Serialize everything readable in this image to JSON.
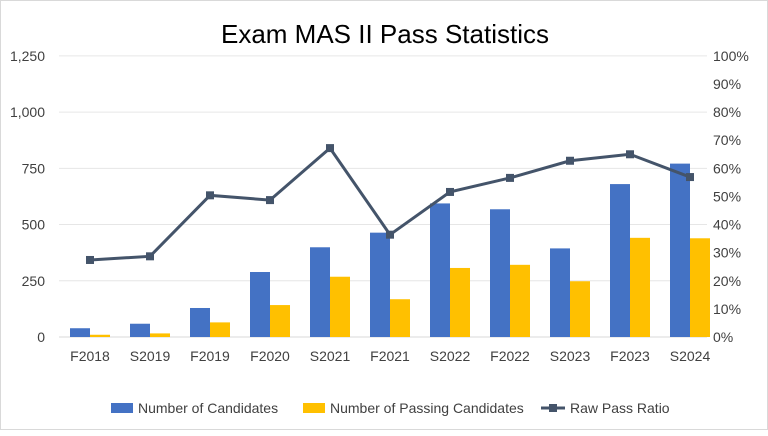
{
  "chart_data": {
    "type": "bar",
    "title": "Exam MAS II Pass Statistics",
    "categories": [
      "F2018",
      "S2019",
      "F2019",
      "F2020",
      "S2021",
      "F2021",
      "S2022",
      "F2022",
      "S2023",
      "F2023",
      "S2024"
    ],
    "series": [
      {
        "name": "Number of Candidates",
        "type": "bar",
        "axis": "left",
        "color": "#4472C4",
        "values": [
          39,
          59,
          129,
          289,
          399,
          464,
          594,
          568,
          394,
          680,
          771
        ]
      },
      {
        "name": "Number of Passing Candidates",
        "type": "bar",
        "axis": "left",
        "color": "#FFC000",
        "values": [
          10,
          16,
          65,
          142,
          268,
          168,
          307,
          321,
          248,
          441,
          439
        ]
      },
      {
        "name": "Raw Pass Ratio",
        "type": "line",
        "axis": "right",
        "color": "#44546A",
        "marker": "square",
        "values": [
          27.4,
          28.7,
          50.4,
          48.7,
          67.2,
          36.4,
          51.6,
          56.6,
          62.7,
          65.0,
          56.9
        ]
      }
    ],
    "ylim": [
      0,
      1250
    ],
    "yticks": [
      "0",
      "250",
      "500",
      "750",
      "1,000",
      "1,250"
    ],
    "y2lim": [
      0,
      100
    ],
    "y2ticks": [
      "0%",
      "10%",
      "20%",
      "30%",
      "40%",
      "50%",
      "60%",
      "70%",
      "80%",
      "90%",
      "100%"
    ],
    "grid": true,
    "legend": "bottom"
  }
}
